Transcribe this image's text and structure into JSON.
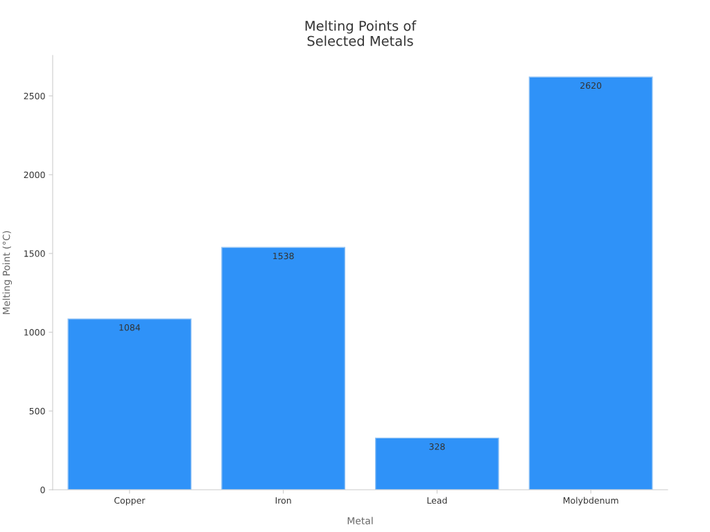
{
  "chart_data": {
    "type": "bar",
    "title": "Melting Points of\nSelected Metals",
    "xlabel": "Metal",
    "ylabel": "Melting Point (°C)",
    "categories": [
      "Copper",
      "Iron",
      "Lead",
      "Molybdenum"
    ],
    "values": [
      1084,
      1538,
      328,
      2620
    ],
    "color": "#2f92f8",
    "ylim": [
      0,
      2757
    ],
    "yticks": [
      0,
      500,
      1000,
      1500,
      2000,
      2500
    ],
    "grid": false,
    "legend": false,
    "data_labels": true
  }
}
